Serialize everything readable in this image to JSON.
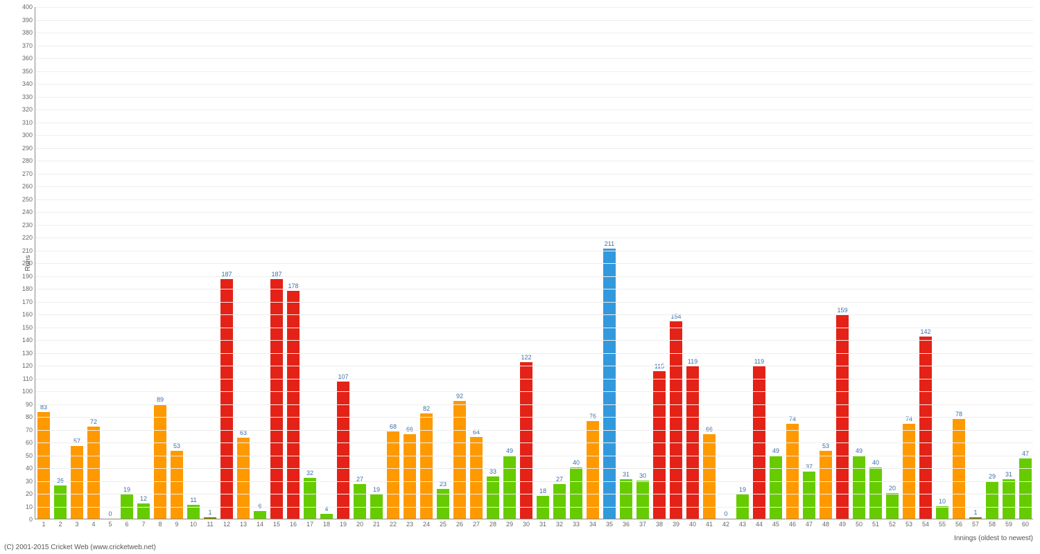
{
  "chart": {
    "type": "bar",
    "ylabel": "Runs",
    "xlabel": "Innings (oldest to newest)",
    "ylim": [
      0,
      400
    ],
    "ytick_step": 10,
    "grid_color": "#eeeeee",
    "axis_color": "#888888",
    "background": "#ffffff",
    "label_fontsize": 9,
    "bar_label_color": "#3a6ea5",
    "tick_label_color": "#666666",
    "bar_width_ratio": 0.72,
    "colors": {
      "orange": "#ff9900",
      "green": "#66cc00",
      "red": "#e42217",
      "blue": "#3399dd",
      "olive": "#808000"
    },
    "data": [
      {
        "x": 1,
        "v": 83,
        "c": "orange"
      },
      {
        "x": 2,
        "v": 26,
        "c": "green"
      },
      {
        "x": 3,
        "v": 57,
        "c": "orange"
      },
      {
        "x": 4,
        "v": 72,
        "c": "orange"
      },
      {
        "x": 5,
        "v": 0,
        "c": "green"
      },
      {
        "x": 6,
        "v": 19,
        "c": "green"
      },
      {
        "x": 7,
        "v": 12,
        "c": "green"
      },
      {
        "x": 8,
        "v": 89,
        "c": "orange"
      },
      {
        "x": 9,
        "v": 53,
        "c": "orange"
      },
      {
        "x": 10,
        "v": 11,
        "c": "green"
      },
      {
        "x": 11,
        "v": 1,
        "c": "olive"
      },
      {
        "x": 12,
        "v": 187,
        "c": "red"
      },
      {
        "x": 13,
        "v": 63,
        "c": "orange"
      },
      {
        "x": 14,
        "v": 6,
        "c": "green"
      },
      {
        "x": 15,
        "v": 187,
        "c": "red"
      },
      {
        "x": 16,
        "v": 178,
        "c": "red"
      },
      {
        "x": 17,
        "v": 32,
        "c": "green"
      },
      {
        "x": 18,
        "v": 4,
        "c": "green"
      },
      {
        "x": 19,
        "v": 107,
        "c": "red"
      },
      {
        "x": 20,
        "v": 27,
        "c": "green"
      },
      {
        "x": 21,
        "v": 19,
        "c": "green"
      },
      {
        "x": 22,
        "v": 68,
        "c": "orange"
      },
      {
        "x": 23,
        "v": 66,
        "c": "orange"
      },
      {
        "x": 24,
        "v": 82,
        "c": "orange"
      },
      {
        "x": 25,
        "v": 23,
        "c": "green"
      },
      {
        "x": 26,
        "v": 92,
        "c": "orange"
      },
      {
        "x": 27,
        "v": 64,
        "c": "orange"
      },
      {
        "x": 28,
        "v": 33,
        "c": "green"
      },
      {
        "x": 29,
        "v": 49,
        "c": "green"
      },
      {
        "x": 30,
        "v": 122,
        "c": "red"
      },
      {
        "x": 31,
        "v": 18,
        "c": "green"
      },
      {
        "x": 32,
        "v": 27,
        "c": "green"
      },
      {
        "x": 33,
        "v": 40,
        "c": "green"
      },
      {
        "x": 34,
        "v": 76,
        "c": "orange"
      },
      {
        "x": 35,
        "v": 211,
        "c": "blue"
      },
      {
        "x": 36,
        "v": 31,
        "c": "green"
      },
      {
        "x": 37,
        "v": 30,
        "c": "green"
      },
      {
        "x": 38,
        "v": 115,
        "c": "red"
      },
      {
        "x": 39,
        "v": 154,
        "c": "red"
      },
      {
        "x": 40,
        "v": 119,
        "c": "red"
      },
      {
        "x": 41,
        "v": 66,
        "c": "orange"
      },
      {
        "x": 42,
        "v": 0,
        "c": "green"
      },
      {
        "x": 43,
        "v": 19,
        "c": "green"
      },
      {
        "x": 44,
        "v": 119,
        "c": "red"
      },
      {
        "x": 45,
        "v": 49,
        "c": "green"
      },
      {
        "x": 46,
        "v": 74,
        "c": "orange"
      },
      {
        "x": 47,
        "v": 37,
        "c": "green"
      },
      {
        "x": 48,
        "v": 53,
        "c": "orange"
      },
      {
        "x": 49,
        "v": 159,
        "c": "red"
      },
      {
        "x": 50,
        "v": 49,
        "c": "green"
      },
      {
        "x": 51,
        "v": 40,
        "c": "green"
      },
      {
        "x": 52,
        "v": 20,
        "c": "green"
      },
      {
        "x": 53,
        "v": 74,
        "c": "orange"
      },
      {
        "x": 54,
        "v": 142,
        "c": "red"
      },
      {
        "x": 55,
        "v": 10,
        "c": "green"
      },
      {
        "x": 56,
        "v": 78,
        "c": "orange"
      },
      {
        "x": 57,
        "v": 1,
        "c": "olive"
      },
      {
        "x": 58,
        "v": 29,
        "c": "green"
      },
      {
        "x": 59,
        "v": 31,
        "c": "green"
      },
      {
        "x": 60,
        "v": 47,
        "c": "green"
      }
    ]
  },
  "copyright": "(C) 2001-2015 Cricket Web (www.cricketweb.net)"
}
